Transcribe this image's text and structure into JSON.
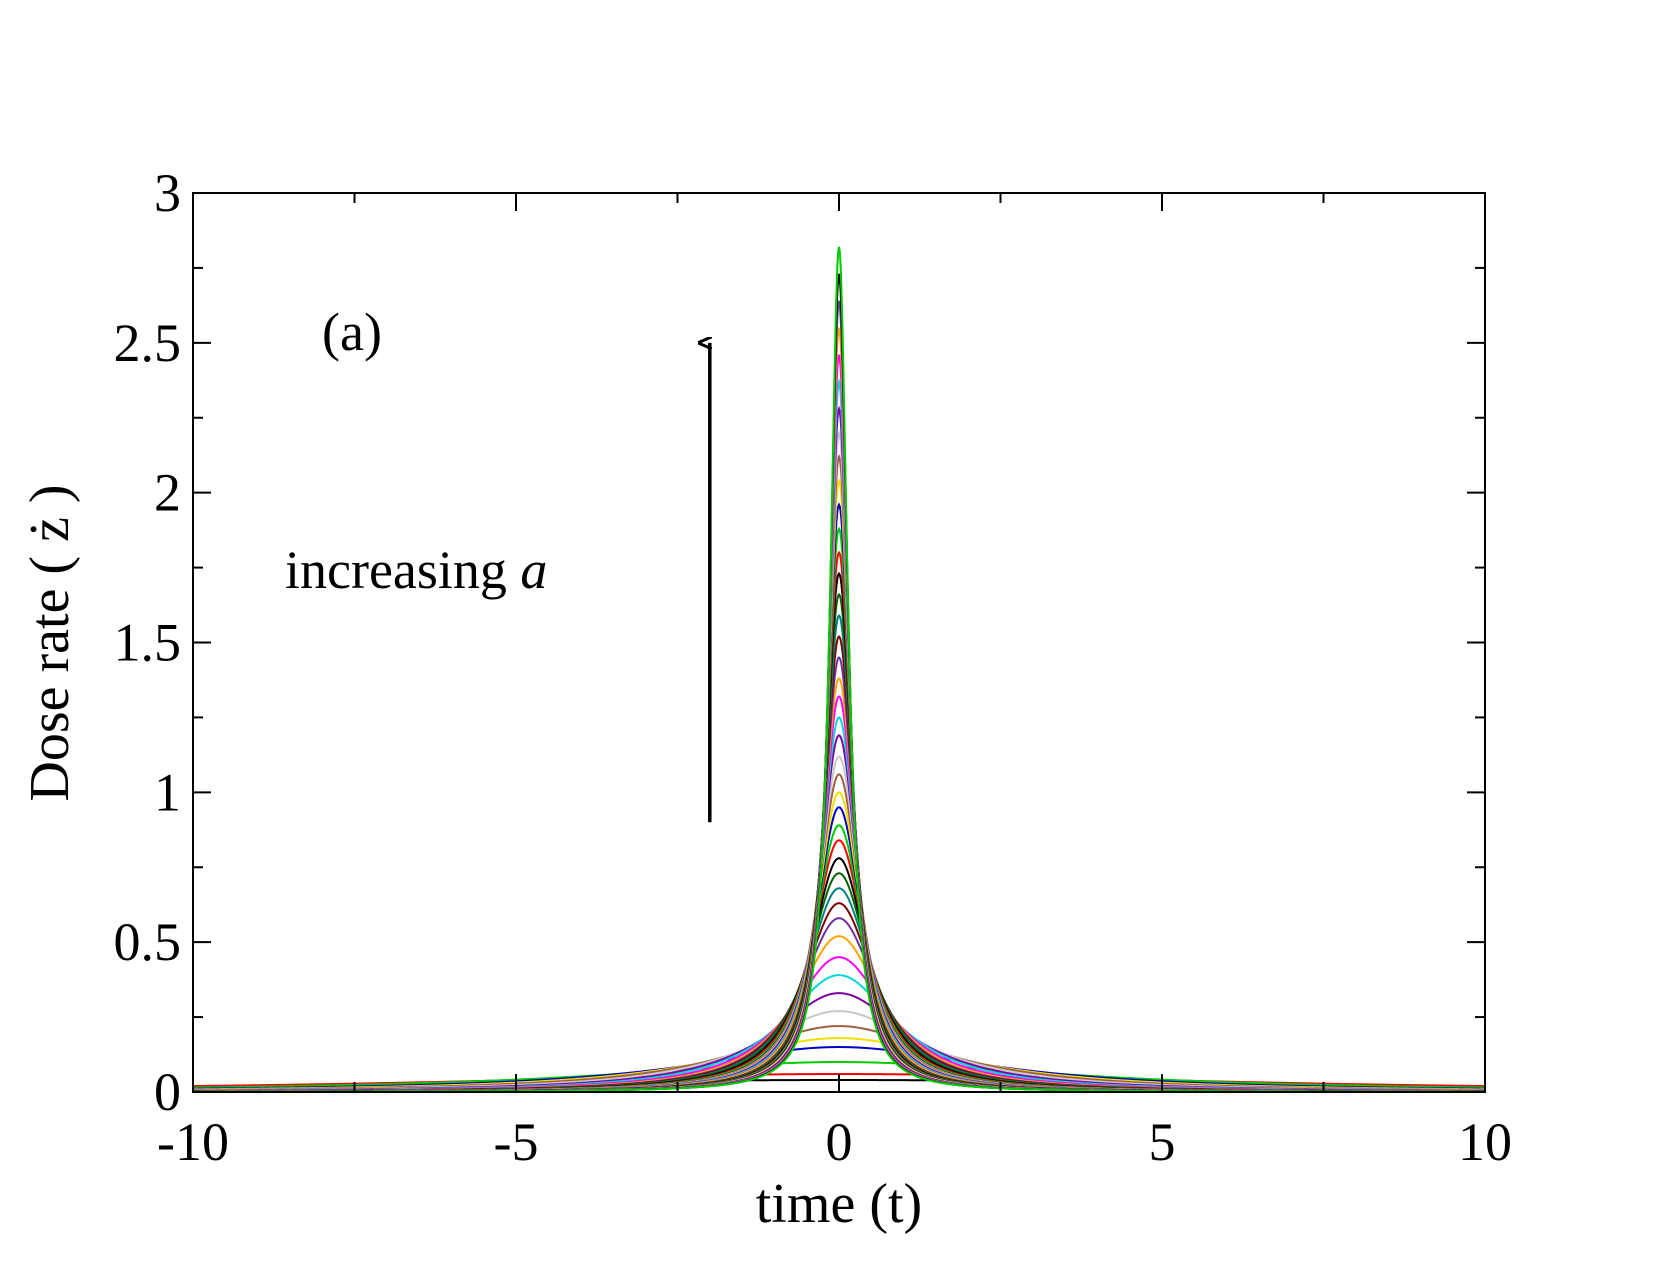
{
  "chart_data": {
    "type": "line",
    "title": "",
    "xlabel": "time (t)",
    "ylabel": "Dose rate ( ż )",
    "xlim": [
      -10,
      10
    ],
    "ylim": [
      0,
      3
    ],
    "x_ticks": [
      -10,
      -5,
      0,
      5,
      10
    ],
    "x_tick_labels": [
      "-10",
      "-5",
      "0",
      "5",
      "10"
    ],
    "y_ticks": [
      0,
      0.5,
      1,
      1.5,
      2,
      2.5,
      3
    ],
    "y_tick_labels": [
      "0",
      "0.5",
      "1",
      "1.5",
      "2",
      "2.5",
      "3"
    ],
    "grid": false,
    "annotations": {
      "panel_label": "(a)",
      "trend_text": "increasing",
      "trend_var": "a",
      "arrow": {
        "from": [
          -2,
          0.9
        ],
        "to": [
          -2,
          2.5
        ]
      }
    },
    "series_model": "z_dot(t) = peak / (1 + (t / width)^2)",
    "series_peaks": [
      0.04,
      0.06,
      0.1,
      0.15,
      0.18,
      0.22,
      0.27,
      0.33,
      0.39,
      0.45,
      0.52,
      0.58,
      0.63,
      0.68,
      0.73,
      0.78,
      0.84,
      0.89,
      0.95,
      1.0,
      1.06,
      1.12,
      1.19,
      1.25,
      1.32,
      1.38,
      1.45,
      1.52,
      1.59,
      1.66,
      1.73,
      1.8,
      1.88,
      1.96,
      2.04,
      2.12,
      2.2,
      2.28,
      2.37,
      2.46,
      2.55,
      2.64,
      2.73,
      2.82
    ],
    "series_widths": [
      9.0,
      7.0,
      4.2,
      2.8,
      2.3,
      1.9,
      1.55,
      1.27,
      1.08,
      0.93,
      0.81,
      0.73,
      0.68,
      0.63,
      0.59,
      0.55,
      0.51,
      0.48,
      0.45,
      0.43,
      0.41,
      0.39,
      0.37,
      0.35,
      0.33,
      0.32,
      0.3,
      0.29,
      0.28,
      0.27,
      0.26,
      0.25,
      0.24,
      0.23,
      0.22,
      0.21,
      0.205,
      0.2,
      0.19,
      0.185,
      0.18,
      0.175,
      0.17,
      0.165
    ],
    "series_colors": [
      "#000000",
      "#ff0000",
      "#00cc00",
      "#0000cc",
      "#f0e000",
      "#a06040",
      "#c8c8c8",
      "#8000a0",
      "#00d8d8",
      "#ff00ff",
      "#ffa500",
      "#7030a0",
      "#800000",
      "#008080",
      "#006400",
      "#000000",
      "#ff0000",
      "#00cc00",
      "#0000cc",
      "#f0e000",
      "#a06040",
      "#c8c8c8",
      "#8000a0",
      "#00d8d8",
      "#ff00ff",
      "#ffa500",
      "#7030a0",
      "#800000",
      "#008080",
      "#006400",
      "#000000",
      "#ff0000",
      "#00cc00",
      "#0000cc",
      "#f0e000",
      "#a06040",
      "#c8c8c8",
      "#8000a0",
      "#00d8d8",
      "#ff00ff",
      "#ffa500",
      "#7030a0",
      "#000000",
      "#00cc00"
    ]
  }
}
